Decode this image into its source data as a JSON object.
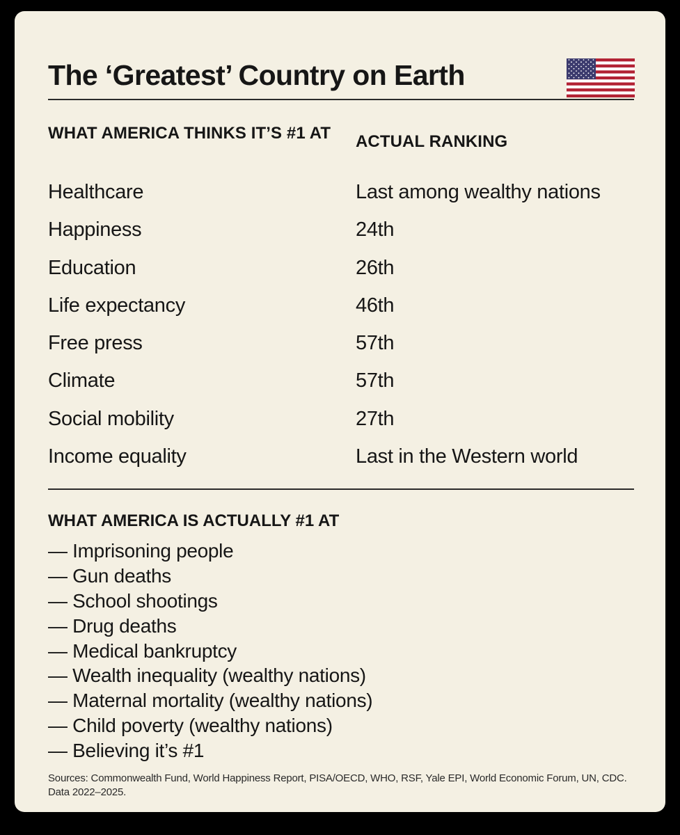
{
  "title": "The ‘Greatest’ Country on Earth",
  "flag_icon": "us-flag-icon",
  "colors": {
    "background": "#000000",
    "card": "#f4f0e3",
    "text": "#161616",
    "flag_red": "#b22234",
    "flag_blue": "#3c3b6e"
  },
  "table": {
    "left_header": "WHAT AMERICA THINKS IT’S #1 AT",
    "right_header": "ACTUAL RANKING",
    "rows": [
      {
        "label": "Healthcare",
        "rank": "Last among wealthy nations"
      },
      {
        "label": "Happiness",
        "rank": "24th"
      },
      {
        "label": "Education",
        "rank": "26th"
      },
      {
        "label": "Life expectancy",
        "rank": "46th"
      },
      {
        "label": "Free press",
        "rank": "57th"
      },
      {
        "label": "Climate",
        "rank": "57th"
      },
      {
        "label": "Social mobility",
        "rank": "27th"
      },
      {
        "label": "Income equality",
        "rank": "Last in the Western world"
      }
    ]
  },
  "actual_section": {
    "heading": "WHAT AMERICA IS ACTUALLY #1 AT",
    "items": [
      "— Imprisoning people",
      "— Gun deaths",
      "— School shootings",
      "— Drug deaths",
      "— Medical bankruptcy",
      "— Wealth inequality (wealthy nations)",
      "— Maternal mortality (wealthy nations)",
      "— Child poverty (wealthy nations)",
      "— Believing it’s #1"
    ]
  },
  "sources": "Sources: Commonwealth Fund, World Happiness Report, PISA/OECD, WHO, RSF, Yale EPI, World Economic Forum, UN, CDC. Data 2022–2025."
}
